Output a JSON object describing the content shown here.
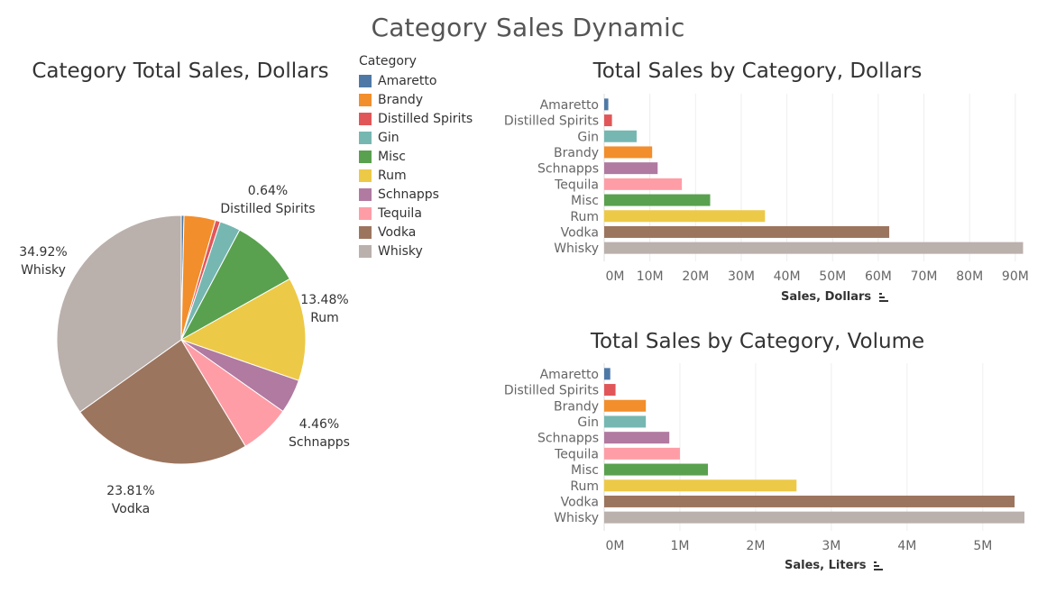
{
  "dashboard_title": "Category Sales Dynamic",
  "legend": {
    "title": "Category",
    "items": [
      {
        "label": "Amaretto",
        "color": "#4e79a7"
      },
      {
        "label": "Brandy",
        "color": "#f28e2b"
      },
      {
        "label": "Distilled Spirits",
        "color": "#e15759"
      },
      {
        "label": "Gin",
        "color": "#76b7b2"
      },
      {
        "label": "Misc",
        "color": "#59a14f"
      },
      {
        "label": "Rum",
        "color": "#edc948"
      },
      {
        "label": "Schnapps",
        "color": "#b07aa1"
      },
      {
        "label": "Tequila",
        "color": "#ff9da7"
      },
      {
        "label": "Vodka",
        "color": "#9c755f"
      },
      {
        "label": "Whisky",
        "color": "#bab0ac"
      }
    ]
  },
  "colors": {
    "Amaretto": "#4e79a7",
    "Brandy": "#f28e2b",
    "Distilled Spirits": "#e15759",
    "Gin": "#76b7b2",
    "Misc": "#59a14f",
    "Rum": "#edc948",
    "Schnapps": "#b07aa1",
    "Tequila": "#ff9da7",
    "Vodka": "#9c755f",
    "Whisky": "#bab0ac"
  },
  "chart_data": [
    {
      "type": "pie",
      "title": "Category Total Sales, Dollars",
      "categories": [
        "Amaretto",
        "Brandy",
        "Distilled Spirits",
        "Gin",
        "Misc",
        "Rum",
        "Schnapps",
        "Tequila",
        "Vodka",
        "Whisky"
      ],
      "values": [
        0.35,
        4.1,
        0.64,
        2.7,
        9.1,
        13.48,
        4.46,
        6.6,
        23.81,
        34.92
      ],
      "unit": "%",
      "labels": [
        {
          "category": "Distilled Spirits",
          "percent": "0.64%",
          "name": "Distilled Spirits"
        },
        {
          "category": "Rum",
          "percent": "13.48%",
          "name": "Rum"
        },
        {
          "category": "Schnapps",
          "percent": "4.46%",
          "name": "Schnapps"
        },
        {
          "category": "Vodka",
          "percent": "23.81%",
          "name": "Vodka"
        },
        {
          "category": "Whisky",
          "percent": "34.92%",
          "name": "Whisky"
        }
      ]
    },
    {
      "type": "bar",
      "orientation": "horizontal",
      "title": "Total Sales by Category, Dollars",
      "categories": [
        "Amaretto",
        "Distilled Spirits",
        "Gin",
        "Brandy",
        "Schnapps",
        "Tequila",
        "Misc",
        "Rum",
        "Vodka",
        "Whisky"
      ],
      "values": [
        0.9,
        1.7,
        7.1,
        10.5,
        11.7,
        17.0,
        23.2,
        35.2,
        62.4,
        91.7
      ],
      "value_unit": "M",
      "ticks": [
        "0M",
        "10M",
        "20M",
        "30M",
        "40M",
        "50M",
        "60M",
        "70M",
        "80M",
        "90M"
      ],
      "xlim": [
        0,
        92
      ],
      "xlabel": "Sales, Dollars",
      "grid": true
    },
    {
      "type": "bar",
      "orientation": "horizontal",
      "title": "Total Sales by Category, Volume",
      "categories": [
        "Amaretto",
        "Distilled Spirits",
        "Brandy",
        "Gin",
        "Schnapps",
        "Tequila",
        "Misc",
        "Rum",
        "Vodka",
        "Whisky"
      ],
      "values": [
        0.08,
        0.15,
        0.55,
        0.55,
        0.86,
        1.0,
        1.37,
        2.54,
        5.42,
        5.55
      ],
      "value_unit": "M",
      "ticks": [
        "0M",
        "1M",
        "2M",
        "3M",
        "4M",
        "5M"
      ],
      "xlim": [
        0,
        5.55
      ],
      "xlabel": "Sales, Liters",
      "grid": true
    }
  ]
}
